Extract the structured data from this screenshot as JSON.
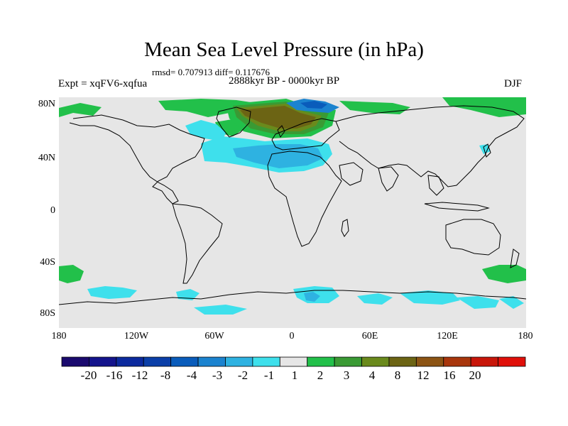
{
  "title": "Mean Sea Level Pressure (in hPa)",
  "stats": "rmsd= 0.707913 diff= 0.117676",
  "period": "2888kyr BP - 0000kyr BP",
  "experiment": "Expt = xqFV6-xqfua",
  "season": "DJF",
  "lat_labels": [
    "80N",
    "40N",
    "0",
    "40S",
    "80S"
  ],
  "lon_labels": [
    "180",
    "120W",
    "60W",
    "0",
    "60E",
    "120E",
    "180"
  ],
  "colorbar": {
    "labels": [
      "-20",
      "-16",
      "-12",
      "-8",
      "-4",
      "-3",
      "-2",
      "-1",
      "1",
      "2",
      "3",
      "4",
      "8",
      "12",
      "16",
      "20"
    ],
    "colors": [
      "#1a0a6e",
      "#14148c",
      "#0c2a9e",
      "#0b3fa8",
      "#0a5cbb",
      "#1b83cf",
      "#2eb2e1",
      "#3ee0ec",
      "#e6e6e6",
      "#22c04a",
      "#3a9a34",
      "#6a8a1c",
      "#6c6414",
      "#8c5414",
      "#a8360c",
      "#c8160a",
      "#e0100a"
    ]
  },
  "colors": {
    "land_ocean_neutral": "#e6e6e6",
    "coast": "#000000"
  }
}
